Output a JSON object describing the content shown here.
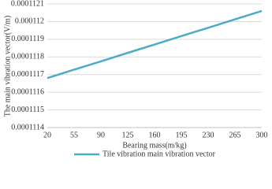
{
  "chart_data": {
    "type": "line",
    "x_label": "Bearing mass(m/kg)",
    "y_label": "The main vibration vector(V/m)",
    "x": [
      20,
      55,
      90,
      125,
      160,
      195,
      230,
      265,
      300
    ],
    "series": [
      {
        "name": "Tile vibration main vibration vector",
        "color": "#4bacc6",
        "values": [
          0.00011168,
          0.000111728,
          0.000111775,
          0.000111823,
          0.00011187,
          0.000111918,
          0.000111965,
          0.000112013,
          0.00011206
        ]
      }
    ],
    "xlim": [
      20,
      300
    ],
    "xticks": [
      20,
      55,
      90,
      125,
      160,
      195,
      230,
      265,
      300
    ],
    "ylim": [
      0.0001114,
      0.0001121
    ],
    "yticks": [
      0.0001114,
      0.0001115,
      0.0001116,
      0.0001117,
      0.0001118,
      0.0001119,
      0.000112,
      0.0001121
    ],
    "grid": true
  }
}
